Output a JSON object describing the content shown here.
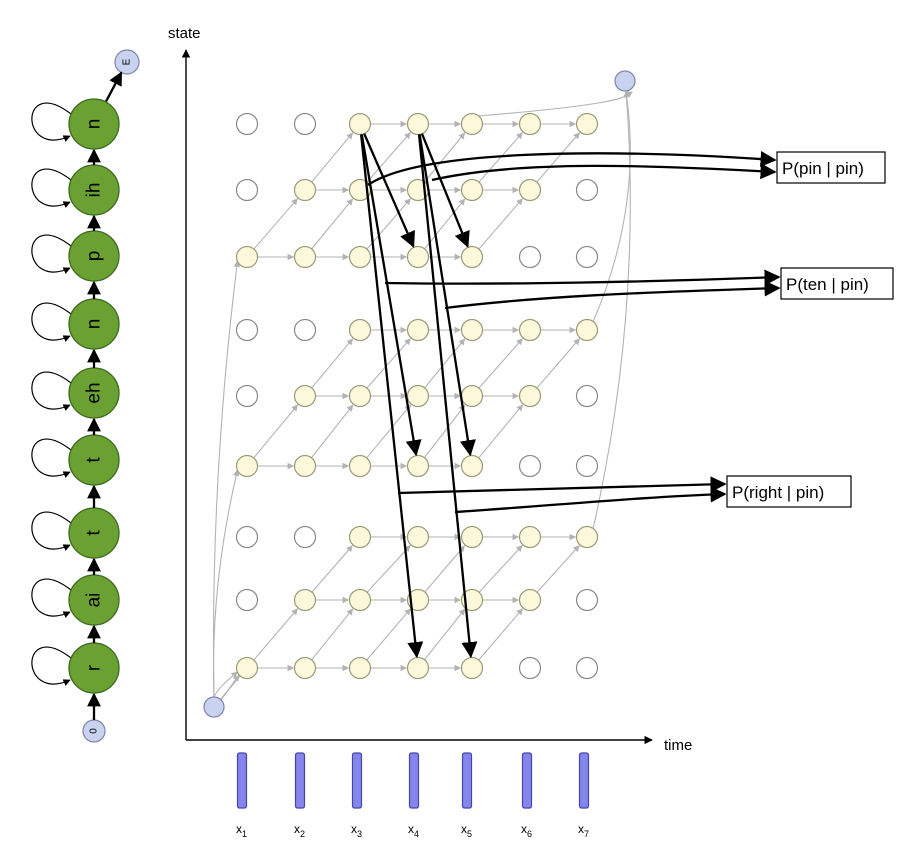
{
  "axes": {
    "y_label": "state",
    "x_label": "time"
  },
  "hmm": {
    "start_label": "0",
    "end_label": "E",
    "states": [
      "r",
      "ai",
      "t",
      "t",
      "eh",
      "n",
      "p",
      "ih",
      "n"
    ],
    "state_color": "#6ba132",
    "start_end_color": "#c9d3ef"
  },
  "frames": {
    "labels": [
      "x",
      "x",
      "x",
      "x",
      "x",
      "x",
      "x"
    ],
    "subscripts": [
      "1",
      "2",
      "3",
      "4",
      "5",
      "6",
      "7"
    ],
    "color": "#8585ee"
  },
  "word_probabilities": [
    {
      "label": "P(pin | pin)"
    },
    {
      "label": "P(ten | pin)"
    },
    {
      "label": "P(right | pin)"
    }
  ],
  "lattice": {
    "columns": 7,
    "rows": 9,
    "active_color": "#fdf7dc",
    "inactive_color": "#ffffff",
    "active": [
      [
        1,
        1,
        1,
        1,
        1,
        0,
        0
      ],
      [
        0,
        1,
        1,
        1,
        1,
        1,
        0
      ],
      [
        0,
        0,
        1,
        1,
        1,
        1,
        1
      ],
      [
        1,
        1,
        1,
        1,
        1,
        0,
        0
      ],
      [
        0,
        1,
        1,
        1,
        1,
        1,
        0
      ],
      [
        0,
        0,
        1,
        1,
        1,
        1,
        1
      ],
      [
        1,
        1,
        1,
        1,
        1,
        0,
        0
      ],
      [
        0,
        1,
        1,
        1,
        1,
        1,
        0
      ],
      [
        0,
        0,
        1,
        1,
        1,
        1,
        1
      ]
    ]
  }
}
